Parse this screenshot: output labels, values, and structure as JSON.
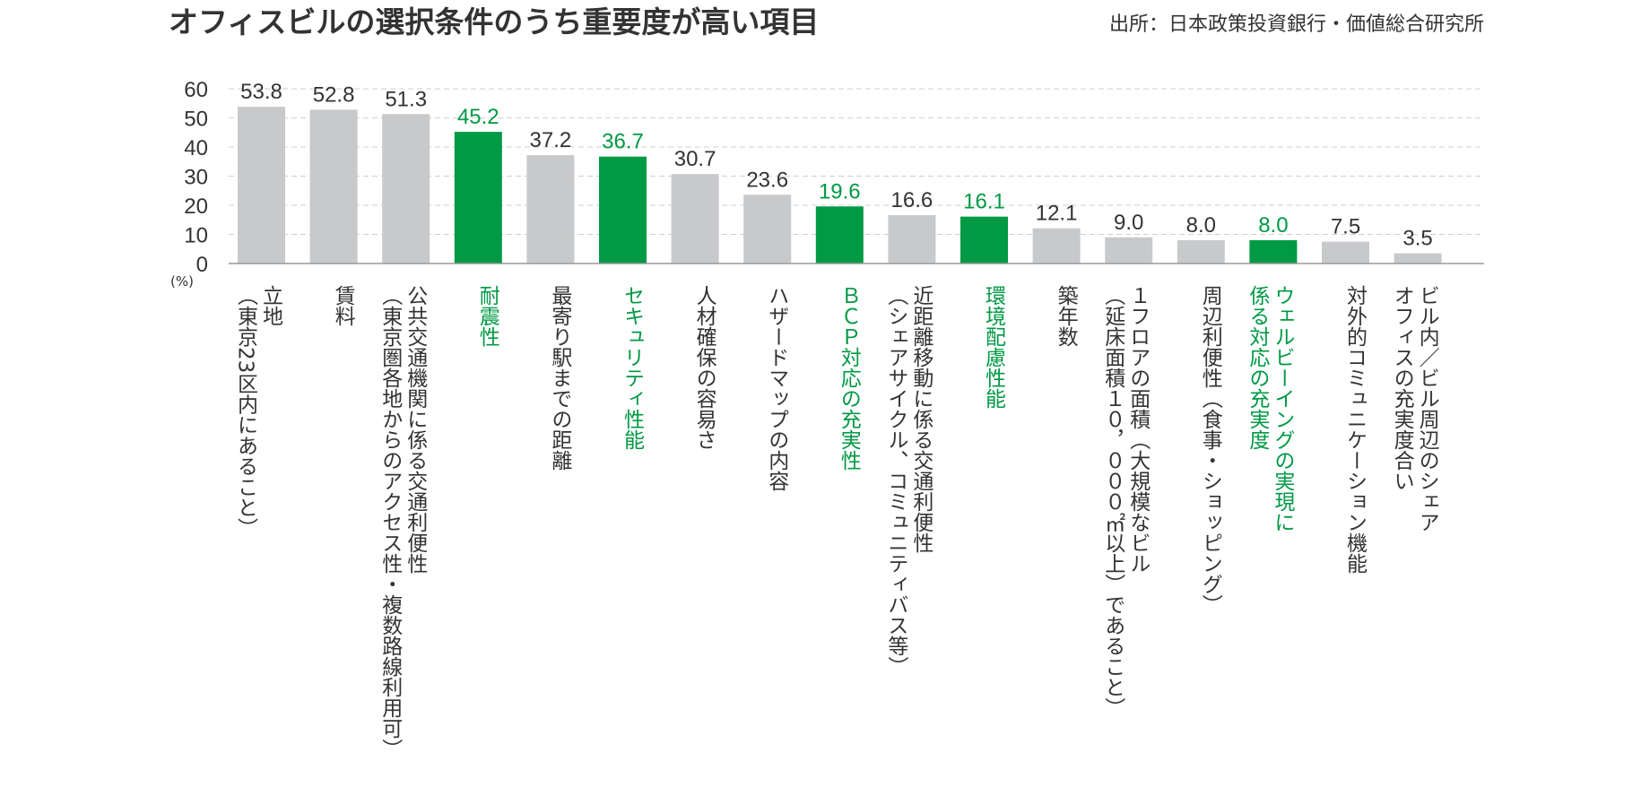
{
  "title": "オフィスビルの選択条件のうち重要度が高い項目",
  "source": "出所：日本政策投資銀行・価値総合研究所",
  "unit_label": "(%)",
  "colors": {
    "gray": "#c8c9cb",
    "green": "#009944",
    "text": "#333333",
    "green_text": "#009944"
  },
  "chart_data": {
    "type": "bar",
    "title": "オフィスビルの選択条件のうち重要度が高い項目",
    "ylabel": "(%)",
    "ylim": [
      0,
      60
    ],
    "yticks": [
      "0",
      "10",
      "20",
      "30",
      "40",
      "50",
      "60"
    ],
    "grid": true,
    "categories": [
      [
        "立地",
        "（東京23区内にあること）"
      ],
      [
        "賃料"
      ],
      [
        "公共交通機関に係る交通利便性",
        "（東京圏各地からのアクセス性・複数路線利用可）"
      ],
      [
        "耐震性"
      ],
      [
        "最寄り駅までの距離"
      ],
      [
        "セキュリティ性能"
      ],
      [
        "人材確保の容易さ"
      ],
      [
        "ハザードマップの内容"
      ],
      [
        "ＢＣＰ対応の充実性"
      ],
      [
        "近距離移動に係る交通利便性",
        "（シェアサイクル、コミュニティバス等）"
      ],
      [
        "環境配慮性能"
      ],
      [
        "築年数"
      ],
      [
        "１フロアの面積（大規模なビル",
        "（延床面積１０，０００㎡以上）であること）"
      ],
      [
        "周辺利便性（食事・ショッピング）"
      ],
      [
        "ウェルビーイングの実現に",
        "係る対応の充実度"
      ],
      [
        "対外的コミュニケーション機能"
      ],
      [
        "ビル内／ビル周辺のシェア",
        "オフィスの充実度合い"
      ]
    ],
    "values": [
      53.8,
      52.8,
      51.3,
      45.2,
      37.2,
      36.7,
      30.7,
      23.6,
      19.6,
      16.6,
      16.1,
      12.1,
      9.0,
      8.0,
      8.0,
      7.5,
      3.5
    ],
    "value_labels": [
      "53.8",
      "52.8",
      "51.3",
      "45.2",
      "37.2",
      "36.7",
      "30.7",
      "23.6",
      "19.6",
      "16.6",
      "16.1",
      "12.1",
      "9.0",
      "8.0",
      "8.0",
      "7.5",
      "3.5"
    ],
    "highlighted": [
      false,
      false,
      false,
      true,
      false,
      true,
      false,
      false,
      true,
      false,
      true,
      false,
      false,
      false,
      true,
      false,
      false
    ]
  }
}
